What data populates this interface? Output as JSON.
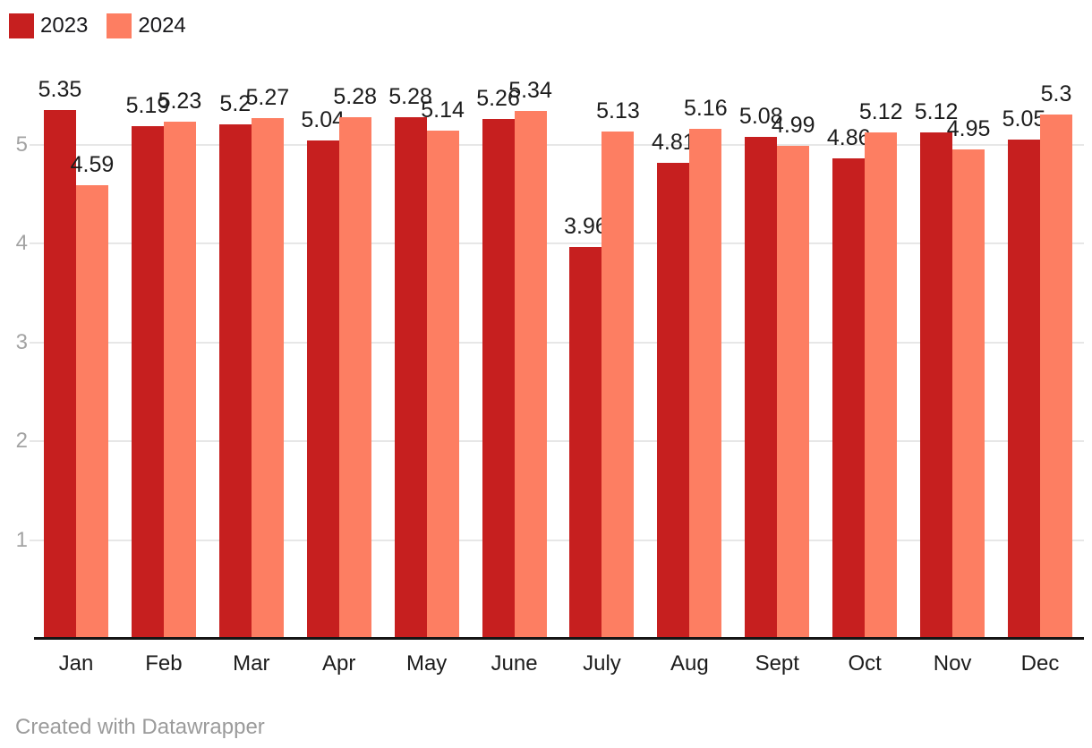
{
  "legend": {
    "items": [
      {
        "label": "2023",
        "color": "#c61f1f"
      },
      {
        "label": "2024",
        "color": "#fd7e62"
      }
    ]
  },
  "footer": {
    "text": "Created with Datawrapper"
  },
  "chart_data": {
    "type": "bar",
    "categories": [
      "Jan",
      "Feb",
      "Mar",
      "Apr",
      "May",
      "June",
      "July",
      "Aug",
      "Sept",
      "Oct",
      "Nov",
      "Dec"
    ],
    "series": [
      {
        "name": "2023",
        "color": "#c61f1f",
        "values": [
          5.35,
          5.19,
          5.2,
          5.04,
          5.28,
          5.26,
          3.96,
          4.81,
          5.08,
          4.86,
          5.12,
          5.05
        ]
      },
      {
        "name": "2024",
        "color": "#fd7e62",
        "values": [
          4.59,
          5.23,
          5.27,
          5.28,
          5.14,
          5.34,
          5.13,
          5.16,
          4.99,
          5.12,
          4.95,
          5.3
        ]
      }
    ],
    "title": "",
    "xlabel": "",
    "ylabel": "",
    "yticks": [
      1,
      2,
      3,
      4,
      5
    ],
    "ylim": [
      0,
      5.45
    ],
    "grid": true,
    "legend_position": "top-left",
    "value_labels": true,
    "colors": {
      "gridline": "#e7e7e7",
      "axis_line": "#151515",
      "ytick_text": "#a3a3a3",
      "label_text": "#1c1c1c"
    }
  }
}
